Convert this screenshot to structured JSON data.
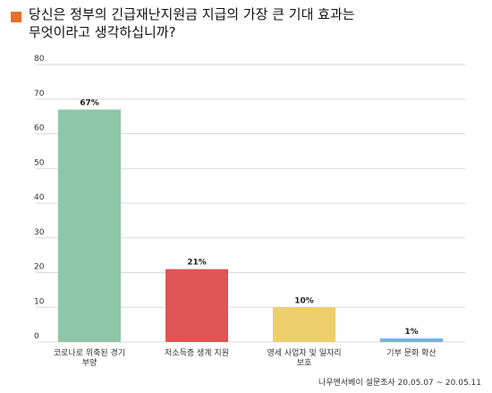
{
  "title_line1": "당신은 정부의 긴급재난지원금 지급의 가장 큰 기대 효과는",
  "title_line2": "무엇이라고 생각하십니까?",
  "source": "나우앤서베이 설문조사 20.05.07 ~ 20.05.11",
  "colors": {
    "accent_square": "#e8702a",
    "grid": "#d9d9d9",
    "axis_text": "#333333"
  },
  "chart_data": {
    "type": "bar",
    "categories": [
      [
        "코로나로 위축된 경기",
        "부양"
      ],
      [
        "저소득층 생계 지원"
      ],
      [
        "영세 사업자 및 일자리",
        "보호"
      ],
      [
        "기부 문화 확산"
      ]
    ],
    "values": [
      67,
      21,
      10,
      1
    ],
    "value_labels": [
      "67%",
      "21%",
      "10%",
      "1%"
    ],
    "bar_colors": [
      "#8ec6a8",
      "#e05454",
      "#edcf6b",
      "#6fb3e0"
    ],
    "ylim": [
      0,
      80
    ],
    "yticks": [
      0,
      10,
      20,
      30,
      40,
      50,
      60,
      70,
      80
    ],
    "grid": true
  }
}
